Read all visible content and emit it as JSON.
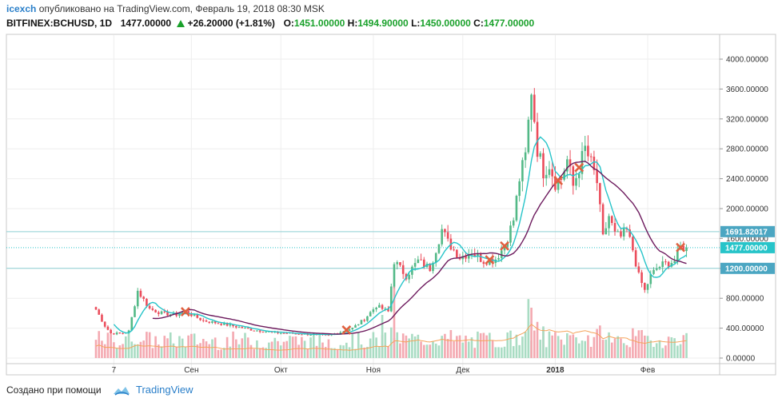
{
  "header": {
    "username": "icexch",
    "published": " опубликовано на TradingView.com, Февраль 19, 2018 08:30 MSK",
    "symbol": "BITFINEX:BCHUSD, 1D",
    "last": "1477.00000",
    "change": "+26.20000 (+1.81%)",
    "open_label": "O:",
    "open": "1451.00000",
    "high_label": "H:",
    "high": "1494.90000",
    "low_label": "L:",
    "low": "1450.00000",
    "close_label": "C:",
    "close": "1477.00000",
    "up_color": "#1aa12b"
  },
  "footer": {
    "created_with": "Создано при помощи",
    "brand": "TradingView",
    "brand_color": "#2a7fc9"
  },
  "chart_data": {
    "type": "candlestick",
    "ylim": [
      0,
      4300
    ],
    "y_ticks": [
      "4000.00000",
      "3600.00000",
      "3200.00000",
      "2800.00000",
      "2400.00000",
      "2000.00000",
      "1600.00000",
      "1200.00000",
      "800.00000",
      "400.00000",
      "0.00000"
    ],
    "y_tick_values": [
      4000,
      3600,
      3200,
      2800,
      2400,
      2000,
      1600,
      1200,
      800,
      400,
      0
    ],
    "x_labels": [
      "7",
      "Сен",
      "Окт",
      "Ноя",
      "Дек",
      "2018",
      "Фев"
    ],
    "x_label_days": [
      6,
      32,
      62,
      93,
      123,
      154,
      185
    ],
    "bold_x_label": "2018",
    "level_upper": 1691.82,
    "level_upper_label": "1691.82017",
    "level_last": 1477.0,
    "level_last_label": "1477.00000",
    "level_lower": 1200.0,
    "level_lower_label": "1200.00000",
    "colors": {
      "up": "#53b987",
      "down": "#eb4d5c",
      "ma_fast": "#27c4c9",
      "ma_slow": "#6d1b5e",
      "volume_ma": "#f5a35a",
      "level": "#8ecfd4",
      "last_badge": "#27c4c9",
      "level_badge": "#4ba6c2"
    },
    "anchors": [
      [
        0,
        650
      ],
      [
        3,
        430
      ],
      [
        5,
        330
      ],
      [
        9,
        330
      ],
      [
        11,
        360
      ],
      [
        14,
        900
      ],
      [
        18,
        660
      ],
      [
        22,
        600
      ],
      [
        27,
        580
      ],
      [
        30,
        620
      ],
      [
        36,
        500
      ],
      [
        42,
        460
      ],
      [
        52,
        380
      ],
      [
        60,
        340
      ],
      [
        70,
        320
      ],
      [
        78,
        300
      ],
      [
        86,
        400
      ],
      [
        90,
        520
      ],
      [
        94,
        700
      ],
      [
        98,
        620
      ],
      [
        100,
        1300
      ],
      [
        104,
        1100
      ],
      [
        108,
        1300
      ],
      [
        112,
        1200
      ],
      [
        116,
        1720
      ],
      [
        118,
        1550
      ],
      [
        122,
        1350
      ],
      [
        126,
        1420
      ],
      [
        130,
        1300
      ],
      [
        134,
        1330
      ],
      [
        137,
        1500
      ],
      [
        140,
        1850
      ],
      [
        142,
        2400
      ],
      [
        144,
        2700
      ],
      [
        146,
        3600
      ],
      [
        148,
        2800
      ],
      [
        150,
        2500
      ],
      [
        152,
        2600
      ],
      [
        154,
        2350
      ],
      [
        156,
        2400
      ],
      [
        158,
        2650
      ],
      [
        160,
        2300
      ],
      [
        162,
        2550
      ],
      [
        164,
        2800
      ],
      [
        166,
        2600
      ],
      [
        168,
        2350
      ],
      [
        170,
        1600
      ],
      [
        172,
        1900
      ],
      [
        174,
        1650
      ],
      [
        176,
        1620
      ],
      [
        178,
        1700
      ],
      [
        180,
        1450
      ],
      [
        182,
        1100
      ],
      [
        184,
        900
      ],
      [
        186,
        1100
      ],
      [
        188,
        1200
      ],
      [
        190,
        1250
      ],
      [
        194,
        1300
      ],
      [
        196,
        1480
      ],
      [
        198,
        1477
      ]
    ],
    "volume": {
      "days": [
        96,
        100,
        145,
        146,
        150
      ],
      "values": [
        600,
        1000,
        820,
        700,
        440
      ],
      "note": ""
    }
  }
}
